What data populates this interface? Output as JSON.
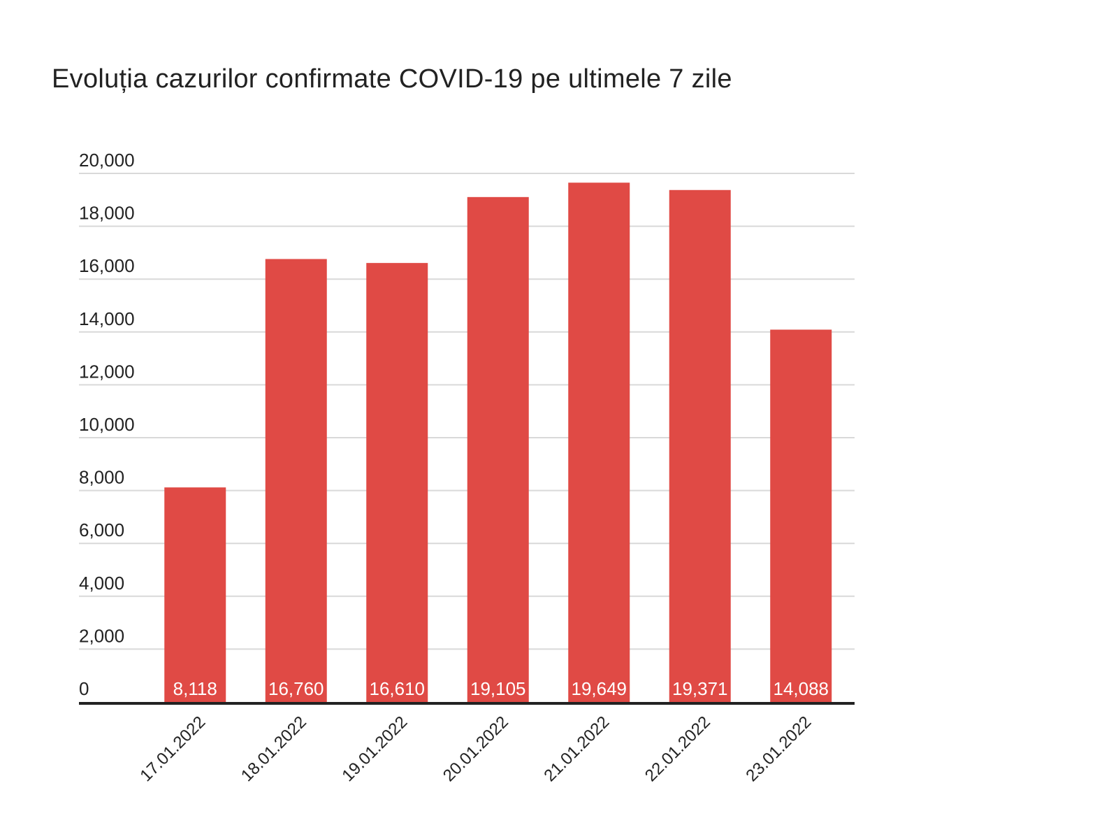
{
  "chart_data": {
    "type": "bar",
    "title": "Evoluția cazurilor confirmate COVID-19 pe ultimele 7 zile",
    "xlabel": "",
    "ylabel": "",
    "categories": [
      "17.01.2022",
      "18.01.2022",
      "19.01.2022",
      "20.01.2022",
      "21.01.2022",
      "22.01.2022",
      "23.01.2022"
    ],
    "values": [
      8118,
      16760,
      16610,
      19105,
      19649,
      19371,
      14088
    ],
    "value_labels": [
      "8,118",
      "16,760",
      "16,610",
      "19,105",
      "19,649",
      "19,371",
      "14,088"
    ],
    "ylim": [
      0,
      20000
    ],
    "yticks": [
      0,
      2000,
      4000,
      6000,
      8000,
      10000,
      12000,
      14000,
      16000,
      18000,
      20000
    ],
    "ytick_labels": [
      "0",
      "2,000",
      "4,000",
      "6,000",
      "8,000",
      "10,000",
      "12,000",
      "14,000",
      "16,000",
      "18,000",
      "20,000"
    ],
    "grid": true,
    "legend": "none",
    "colors": {
      "bar": "#e04a45",
      "grid": "#d9d9d9",
      "axis": "#222222",
      "data_label": "#ffffff",
      "text": "#222222"
    }
  }
}
